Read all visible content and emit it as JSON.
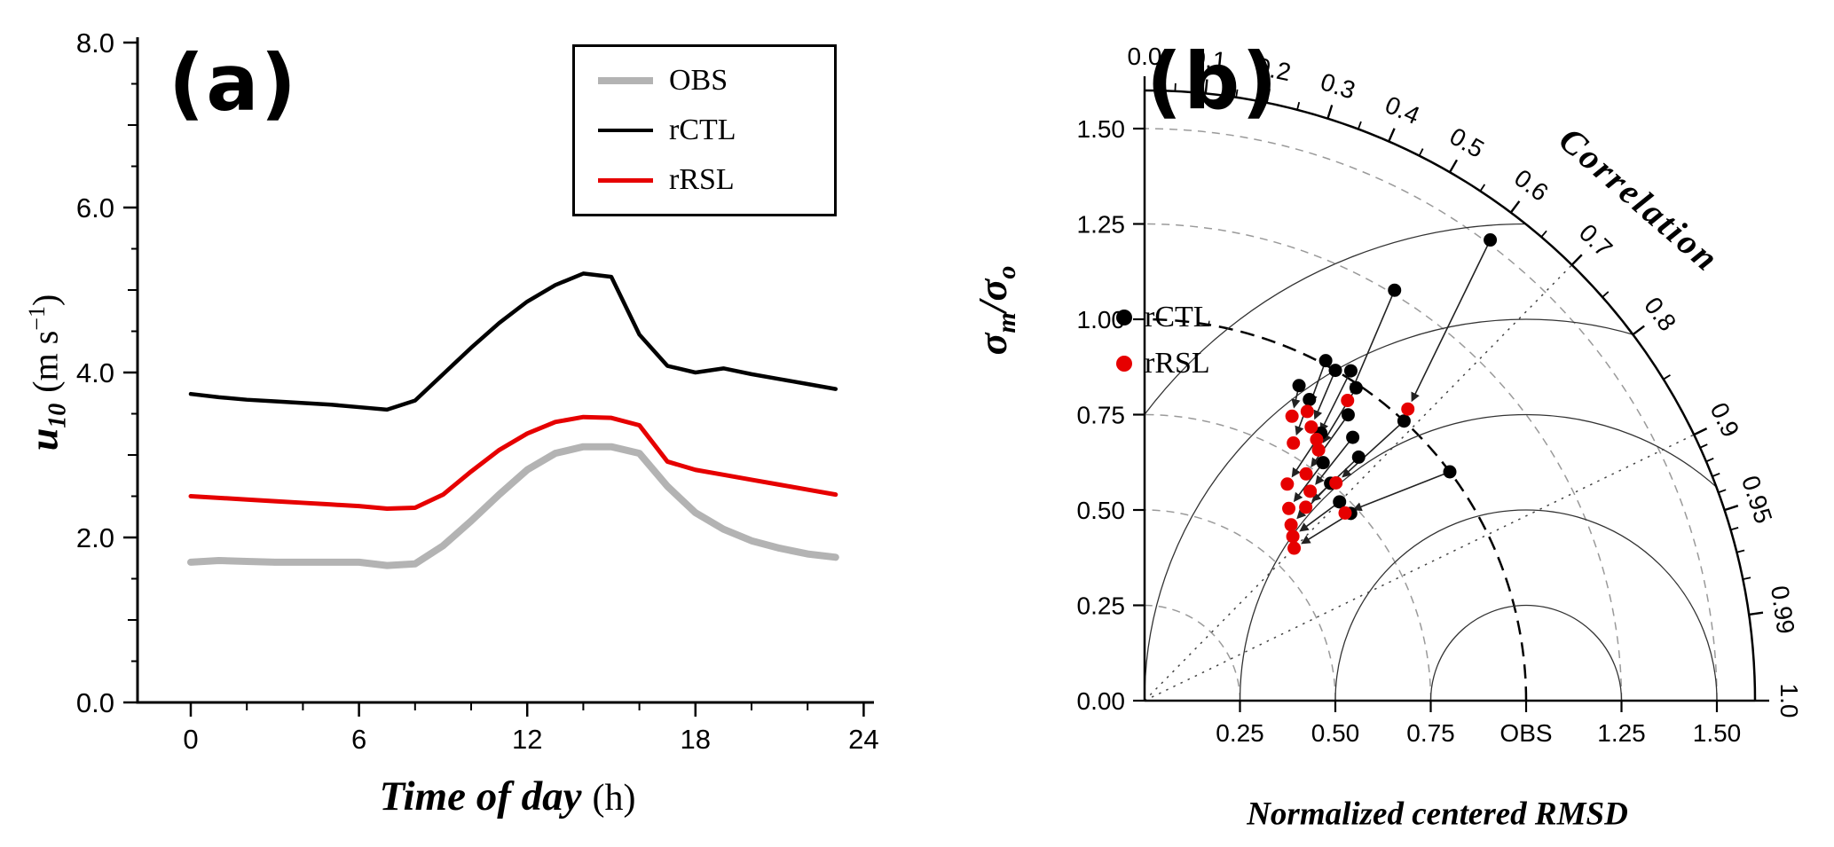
{
  "panel_a": {
    "label": "(a)",
    "xlabel_main": "Time of day",
    "xlabel_units": "(h)",
    "ylabel_var": "u",
    "ylabel_var_sub": "10",
    "ylabel_units_open": "(m s",
    "ylabel_units_sup": "−1",
    "ylabel_units_close": ")"
  },
  "panel_b": {
    "label": "(b)",
    "xlabel": "Normalized centered RMSD",
    "correlation_label": "Correlation",
    "ylabel_sigma_m": "σ",
    "ylabel_sub_m": "m",
    "ylabel_slash": "/",
    "ylabel_sigma_o": "σ",
    "ylabel_sub_o": "o"
  },
  "chart_data": [
    {
      "type": "line",
      "panel": "a",
      "title": "",
      "xlabel": "Time of day (h)",
      "ylabel": "u10 (m s−1)",
      "xlim": [
        0,
        24
      ],
      "ylim": [
        0,
        8
      ],
      "xticks": [
        0,
        6,
        12,
        18,
        24
      ],
      "xtick_labels": [
        "0",
        "6",
        "12",
        "18",
        "24"
      ],
      "yticks": [
        0,
        2,
        4,
        6,
        8
      ],
      "ytick_labels": [
        "0.0",
        "2.0",
        "4.0",
        "6.0",
        "8.0"
      ],
      "x": [
        0,
        1,
        2,
        3,
        4,
        5,
        6,
        7,
        8,
        9,
        10,
        11,
        12,
        13,
        14,
        15,
        16,
        17,
        18,
        19,
        20,
        21,
        22,
        23
      ],
      "series": [
        {
          "name": "OBS",
          "color": "#b3b3b3",
          "line_width": 8,
          "values": [
            1.7,
            1.72,
            1.71,
            1.7,
            1.7,
            1.7,
            1.7,
            1.66,
            1.68,
            1.9,
            2.2,
            2.52,
            2.82,
            3.02,
            3.1,
            3.1,
            3.02,
            2.62,
            2.3,
            2.1,
            1.96,
            1.87,
            1.8,
            1.76
          ]
        },
        {
          "name": "rCTL",
          "color": "#000000",
          "line_width": 4.5,
          "values": [
            3.74,
            3.7,
            3.67,
            3.65,
            3.63,
            3.61,
            3.58,
            3.55,
            3.66,
            3.98,
            4.3,
            4.6,
            4.86,
            5.06,
            5.2,
            5.16,
            4.46,
            4.08,
            4.0,
            4.05,
            3.98,
            3.92,
            3.86,
            3.8
          ]
        },
        {
          "name": "rRSL",
          "color": "#e60000",
          "line_width": 5,
          "values": [
            2.5,
            2.48,
            2.46,
            2.44,
            2.42,
            2.4,
            2.38,
            2.35,
            2.36,
            2.52,
            2.8,
            3.06,
            3.26,
            3.4,
            3.46,
            3.45,
            3.36,
            2.92,
            2.82,
            2.76,
            2.7,
            2.64,
            2.58,
            2.52
          ]
        }
      ]
    },
    {
      "type": "taylor",
      "panel": "b",
      "xlabel": "Normalized centered RMSD",
      "radial_axis_label": "σm/σo",
      "angular_axis_label": "Correlation",
      "max_radius": 1.6,
      "sigma_ticks": [
        0,
        0.25,
        0.5,
        0.75,
        1,
        1.25,
        1.5
      ],
      "sigma_tick_labels": [
        "0.00",
        "0.25",
        "0.50",
        "0.75",
        "1.00",
        "1.25",
        "1.50"
      ],
      "rmsd_ticks": [
        0.25,
        0.5,
        0.75,
        1,
        1.25,
        1.5
      ],
      "rmsd_tick_labels": [
        "0.25",
        "0.50",
        "0.75",
        "OBS",
        "1.25",
        "1.50"
      ],
      "corr_ticks": [
        0,
        0.1,
        0.2,
        0.3,
        0.4,
        0.5,
        0.6,
        0.7,
        0.8,
        0.9,
        0.95,
        0.99,
        1
      ],
      "corr_tick_labels": [
        "0.0",
        "0.1",
        "0.2",
        "0.3",
        "0.4",
        "0.5",
        "0.6",
        "0.7",
        "0.8",
        "0.9",
        "0.95",
        "0.99",
        "1.0"
      ],
      "corr_minor_ticks": [
        0.05,
        0.15,
        0.25,
        0.35,
        0.45,
        0.55,
        0.65,
        0.75,
        0.85,
        0.91,
        0.92,
        0.93,
        0.94,
        0.96,
        0.97,
        0.98
      ],
      "reference": {
        "label": "OBS",
        "sigma": 1.0
      },
      "sigma_circles_dashed": [
        0.25,
        0.5,
        0.75,
        1.25,
        1.5
      ],
      "rmsd_circles": [
        0.25,
        0.5,
        0.75,
        1,
        1.25
      ],
      "dotted_rays_correlation": [
        0.7,
        0.9
      ],
      "legend": [
        {
          "name": "rCTL",
          "color": "#000000"
        },
        {
          "name": "rRSL",
          "color": "#e60000"
        }
      ],
      "pairs": [
        {
          "from": [
            0.6,
            1.51
          ],
          "to": [
            0.67,
            1.03
          ]
        },
        {
          "from": [
            0.52,
            1.26
          ],
          "to": [
            0.56,
            0.95
          ]
        },
        {
          "from": [
            0.47,
            1.01
          ],
          "to": [
            0.49,
            0.87
          ]
        },
        {
          "from": [
            0.5,
            1.0
          ],
          "to": [
            0.52,
            0.84
          ]
        },
        {
          "from": [
            0.53,
            1.02
          ],
          "to": [
            0.55,
            0.82
          ]
        },
        {
          "from": [
            0.56,
            0.99
          ],
          "to": [
            0.57,
            0.8
          ]
        },
        {
          "from": [
            0.44,
            0.92
          ],
          "to": [
            0.46,
            0.84
          ]
        },
        {
          "from": [
            0.48,
            0.9
          ],
          "to": [
            0.5,
            0.78
          ]
        },
        {
          "from": [
            0.58,
            0.92
          ],
          "to": [
            0.58,
            0.73
          ]
        },
        {
          "from": [
            0.62,
            0.88
          ],
          "to": [
            0.62,
            0.7
          ]
        },
        {
          "from": [
            0.66,
            0.85
          ],
          "to": [
            0.64,
            0.66
          ]
        },
        {
          "from": [
            0.55,
            0.84
          ],
          "to": [
            0.55,
            0.68
          ]
        },
        {
          "from": [
            0.6,
            0.78
          ],
          "to": [
            0.6,
            0.63
          ]
        },
        {
          "from": [
            0.65,
            0.75
          ],
          "to": [
            0.64,
            0.6
          ]
        },
        {
          "from": [
            0.7,
            0.73
          ],
          "to": [
            0.67,
            0.58
          ]
        },
        {
          "from": [
            0.8,
            1.0
          ],
          "to": [
            0.73,
            0.72
          ]
        },
        {
          "from": [
            0.74,
            0.73
          ],
          "to": [
            0.7,
            0.56
          ]
        },
        {
          "from": [
            0.68,
            1.0
          ],
          "to": [
            0.66,
            0.76
          ]
        }
      ]
    }
  ]
}
